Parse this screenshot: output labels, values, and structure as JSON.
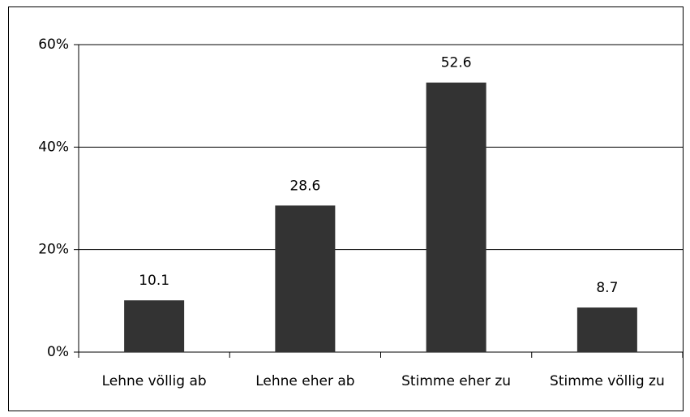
{
  "chart_data": {
    "type": "bar",
    "categories": [
      "Lehne völlig ab",
      "Lehne eher ab",
      "Stimme eher zu",
      "Stimme völlig zu"
    ],
    "values": [
      10.1,
      28.6,
      52.6,
      8.7
    ],
    "color": "#333333",
    "ylim": [
      0,
      60
    ],
    "yticks": [
      {
        "value": 0,
        "label": "0%"
      },
      {
        "value": 20,
        "label": "20%"
      },
      {
        "value": 40,
        "label": "40%"
      },
      {
        "value": 60,
        "label": "60%"
      }
    ],
    "grid": true
  }
}
